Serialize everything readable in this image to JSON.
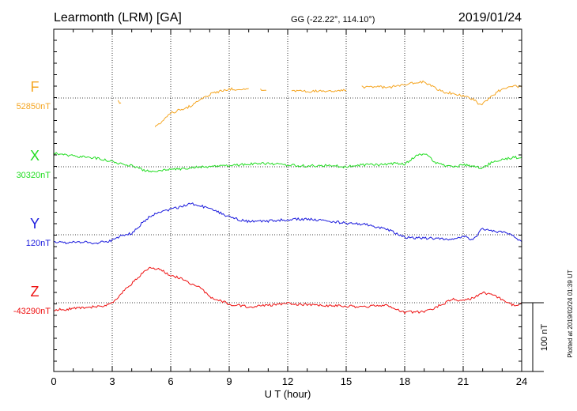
{
  "header": {
    "station": "Learmonth (LRM)  [GA]",
    "coords": "GG (-22.22°, 114.10°)",
    "date": "2019/01/24"
  },
  "side_note": "Plotted at 2019/02/24 01:39 UT",
  "scale_label": "100 nT",
  "chart_data": {
    "type": "line",
    "xlabel": "U T (hour)",
    "xlim": [
      0,
      24
    ],
    "x_ticks": [
      0,
      3,
      6,
      9,
      12,
      15,
      18,
      21,
      24
    ],
    "y_units": "nT",
    "grid": true,
    "scale_bar_nT": 100,
    "series": [
      {
        "name": "F",
        "baseline_label": "52850nT",
        "baseline_nT": 52850,
        "color": "#f5a623",
        "ylim": [
          52800,
          52930
        ],
        "x": [
          3.3,
          3.45,
          null,
          5.2,
          5.5,
          6.0,
          6.5,
          7.0,
          7.5,
          8.0,
          8.5,
          9.0,
          9.5,
          10.0,
          null,
          10.6,
          10.9,
          null,
          12.2,
          13.0,
          13.5,
          14.0,
          14.5,
          15.0,
          null,
          15.8,
          16.5,
          17.0,
          17.5,
          18.0,
          18.5,
          19.0,
          19.3,
          19.6,
          20.0,
          20.5,
          21.0,
          21.5,
          21.9,
          22.3,
          22.7,
          23.0,
          23.4,
          23.7,
          24.0
        ],
        "y": [
          52845,
          52843,
          null,
          52808,
          52815,
          52828,
          52833,
          52838,
          52848,
          52855,
          52860,
          52863,
          52863,
          52864,
          null,
          52862,
          52861,
          null,
          52861,
          52860,
          52860,
          52860,
          52861,
          52861,
          null,
          52866,
          52867,
          52865,
          52867,
          52870,
          52872,
          52874,
          52869,
          52864,
          52858,
          52857,
          52853,
          52848,
          52840,
          52848,
          52858,
          52863,
          52865,
          52867,
          52866
        ]
      },
      {
        "name": "X",
        "baseline_label": "30320nT",
        "baseline_nT": 30320,
        "color": "#22dd22",
        "ylim": [
          30290,
          30420
        ],
        "x": [
          0,
          0.5,
          1.0,
          1.5,
          2.0,
          2.5,
          3.0,
          3.5,
          4.0,
          4.5,
          5.0,
          5.5,
          6.0,
          6.5,
          7.0,
          7.5,
          8.0,
          9.0,
          10.0,
          11.0,
          12.0,
          13.0,
          14.0,
          15.0,
          16.0,
          17.0,
          17.5,
          18.0,
          18.5,
          19.0,
          19.3,
          19.6,
          20.0,
          20.5,
          21.0,
          21.5,
          22.0,
          22.5,
          23.0,
          23.5,
          24.0
        ],
        "y": [
          30340,
          30337,
          30336,
          30334,
          30333,
          30331,
          30328,
          30324,
          30322,
          30316,
          30313,
          30315,
          30317,
          30317,
          30318,
          30320,
          30320,
          30322,
          30324,
          30325,
          30323,
          30321,
          30322,
          30320,
          30323,
          30323,
          30325,
          30324,
          30334,
          30340,
          30333,
          30326,
          30322,
          30319,
          30323,
          30321,
          30318,
          30327,
          30331,
          30333,
          30334
        ]
      },
      {
        "name": "Y",
        "baseline_label": "120nT",
        "baseline_nT": 120,
        "color": "#1a1add",
        "ylim": [
          90,
          220
        ],
        "x": [
          0,
          0.5,
          1.0,
          1.5,
          2.0,
          2.5,
          3.0,
          3.5,
          4.0,
          4.5,
          5.0,
          5.5,
          6.0,
          6.5,
          7.0,
          7.5,
          8.0,
          8.5,
          9.0,
          9.5,
          10.0,
          11.0,
          12.0,
          13.0,
          14.0,
          15.0,
          16.0,
          17.0,
          18.0,
          19.0,
          20.0,
          20.5,
          21.0,
          21.5,
          22.0,
          22.5,
          23.0,
          23.5,
          24.0
        ],
        "y": [
          110,
          108,
          109,
          110,
          108,
          109,
          112,
          119,
          122,
          136,
          148,
          154,
          157,
          160,
          166,
          162,
          158,
          152,
          146,
          142,
          139,
          140,
          142,
          143,
          140,
          137,
          135,
          129,
          116,
          115,
          114,
          114,
          118,
          113,
          129,
          125,
          124,
          119,
          110
        ]
      },
      {
        "name": "Z",
        "baseline_label": "-43290nT",
        "baseline_nT": -43290,
        "color": "#ee1111",
        "ylim": [
          -43320,
          -43190
        ],
        "x": [
          0,
          0.5,
          1.0,
          1.5,
          2.0,
          2.5,
          3.0,
          3.5,
          4.0,
          4.5,
          5.0,
          5.5,
          6.0,
          6.5,
          7.0,
          7.5,
          8.0,
          9.0,
          10.0,
          11.0,
          12.0,
          13.0,
          14.0,
          15.0,
          16.0,
          17.0,
          18.0,
          19.0,
          19.5,
          20.0,
          20.5,
          21.0,
          21.5,
          22.0,
          22.5,
          23.0,
          23.5,
          24.0
        ],
        "y": [
          -43300,
          -43300,
          -43298,
          -43297,
          -43296,
          -43295,
          -43290,
          -43276,
          -43262,
          -43248,
          -43238,
          -43243,
          -43250,
          -43255,
          -43262,
          -43268,
          -43281,
          -43292,
          -43296,
          -43294,
          -43291,
          -43293,
          -43294,
          -43295,
          -43296,
          -43293,
          -43304,
          -43303,
          -43298,
          -43291,
          -43285,
          -43287,
          -43283,
          -43275,
          -43279,
          -43285,
          -43293,
          -43292
        ]
      }
    ]
  }
}
